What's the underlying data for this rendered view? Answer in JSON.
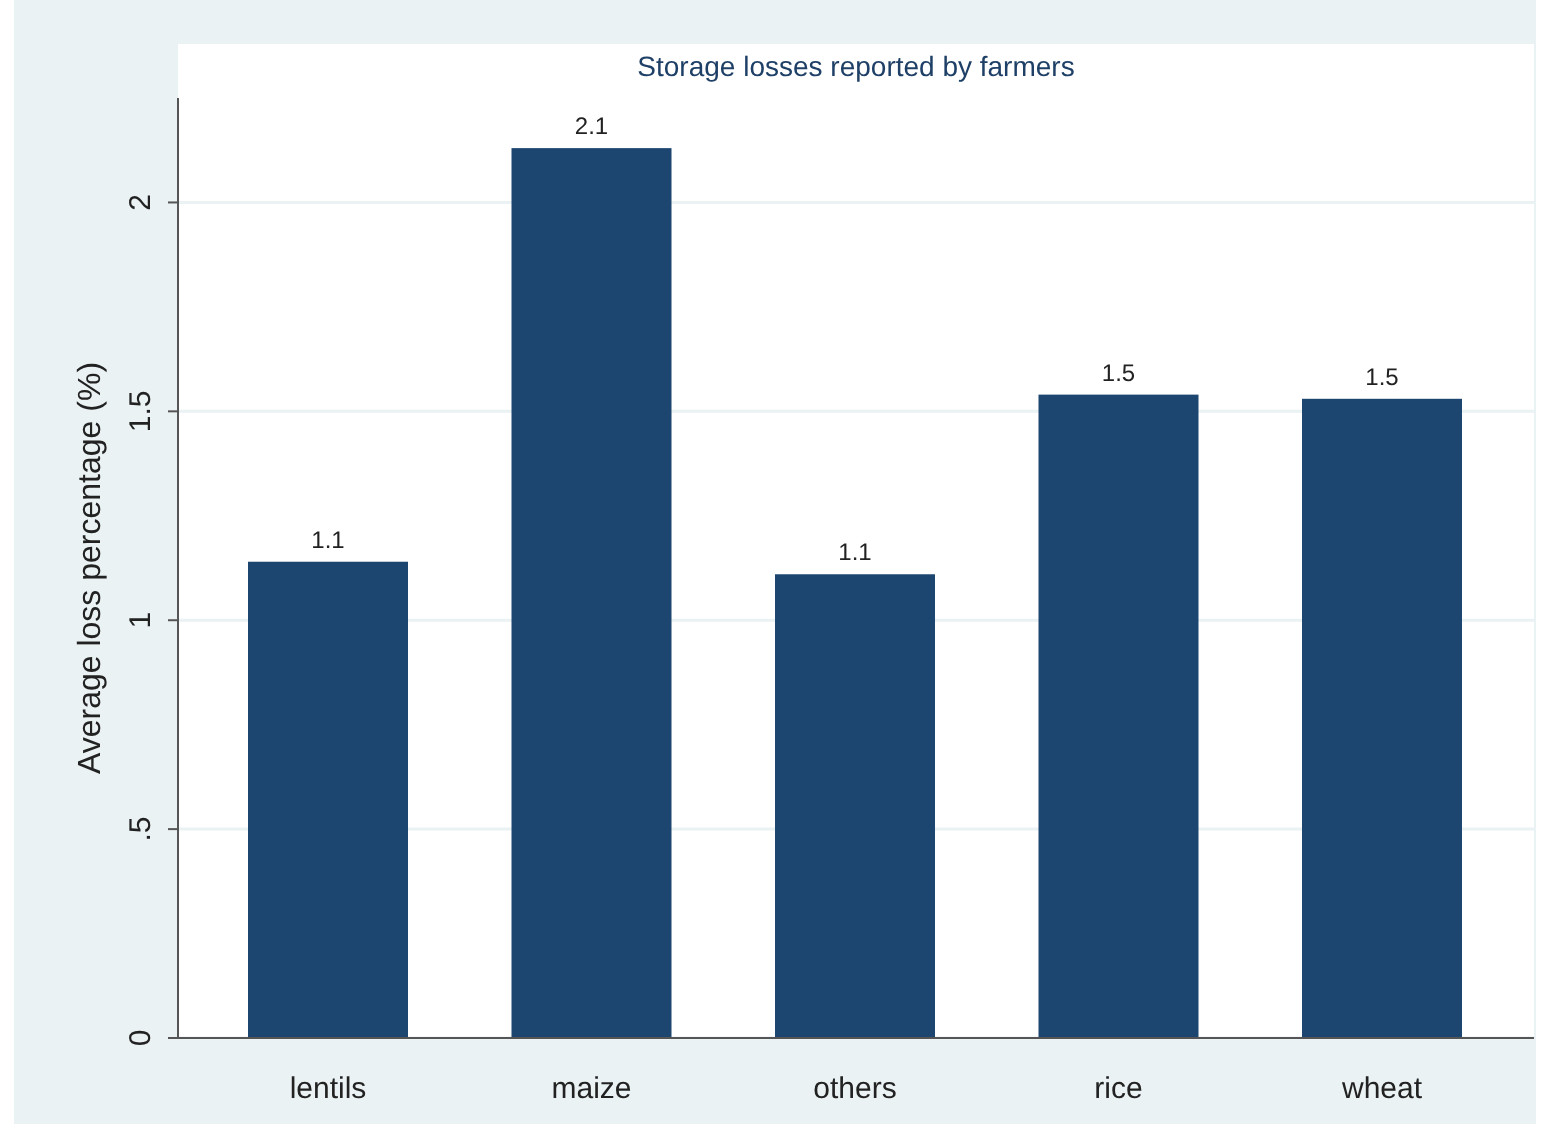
{
  "chart_data": {
    "type": "bar",
    "title": "Storage losses reported by farmers",
    "ylabel": "Average loss percentage (%)",
    "categories": [
      "lentils",
      "maize",
      "others",
      "rice",
      "wheat"
    ],
    "values": [
      1.14,
      2.13,
      1.11,
      1.54,
      1.53
    ],
    "value_labels": [
      "1.1",
      "2.1",
      "1.1",
      "1.5",
      "1.5"
    ],
    "color": "#1c4670",
    "ylim": [
      0,
      2.25
    ],
    "yticks": [
      0,
      {
        "value": 0.5,
        "label": ".5"
      },
      1,
      1.5,
      2
    ],
    "grid": "y"
  }
}
